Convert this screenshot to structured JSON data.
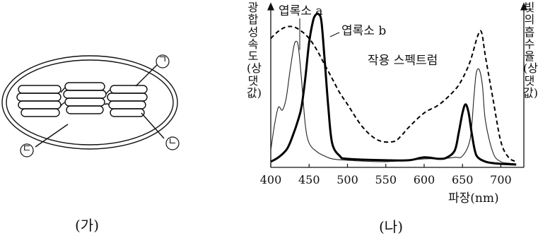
{
  "panel_a": {
    "caption": "(가)",
    "labels": {
      "thylakoid": "ㄱ",
      "granum_lamella": "ㄴ",
      "stroma": "ㄷ"
    }
  },
  "panel_b": {
    "caption": "(나)"
  },
  "chart_data": {
    "type": "line",
    "xlabel": "파장(nm)",
    "ylabel_left": "광합성 속도(상댓값)",
    "ylabel_right": "빛의 흡수율(상댓값)",
    "xlim": [
      400,
      730
    ],
    "x_ticks": [
      400,
      450,
      500,
      550,
      600,
      650,
      700
    ],
    "series": [
      {
        "name": "엽록소 a",
        "style": "thin",
        "color": "#222222",
        "x": [
          400,
          405,
          410,
          415,
          420,
          425,
          430,
          433,
          436,
          440,
          445,
          450,
          460,
          470,
          480,
          500,
          550,
          600,
          620,
          640,
          650,
          660,
          665,
          668,
          672,
          676,
          680,
          690,
          700,
          710,
          720
        ],
        "y": [
          0.1,
          0.28,
          0.4,
          0.38,
          0.46,
          0.65,
          0.82,
          0.86,
          0.82,
          0.6,
          0.28,
          0.15,
          0.09,
          0.06,
          0.04,
          0.03,
          0.02,
          0.04,
          0.04,
          0.05,
          0.06,
          0.18,
          0.48,
          0.64,
          0.66,
          0.55,
          0.3,
          0.08,
          0.02,
          0.01,
          0.005
        ]
      },
      {
        "name": "엽록소 b",
        "style": "thick",
        "color": "#000000",
        "x": [
          400,
          410,
          420,
          425,
          430,
          435,
          440,
          445,
          450,
          455,
          458,
          462,
          466,
          470,
          475,
          480,
          490,
          500,
          550,
          580,
          600,
          620,
          630,
          640,
          645,
          650,
          654,
          658,
          662,
          666,
          670,
          680,
          690,
          700,
          720
        ],
        "y": [
          0.02,
          0.05,
          0.1,
          0.15,
          0.22,
          0.3,
          0.4,
          0.6,
          0.85,
          1.0,
          1.04,
          1.05,
          1.0,
          0.75,
          0.4,
          0.15,
          0.06,
          0.04,
          0.03,
          0.03,
          0.05,
          0.04,
          0.05,
          0.1,
          0.22,
          0.36,
          0.42,
          0.36,
          0.22,
          0.1,
          0.05,
          0.02,
          0.01,
          0.005,
          0.0
        ]
      },
      {
        "name": "작용 스펙트럼",
        "style": "dashed",
        "color": "#000000",
        "x": [
          400,
          410,
          420,
          430,
          440,
          450,
          460,
          470,
          480,
          490,
          500,
          520,
          540,
          560,
          570,
          580,
          600,
          620,
          640,
          650,
          660,
          670,
          675,
          680,
          690,
          700,
          710,
          720
        ],
        "y": [
          0.88,
          0.93,
          0.96,
          0.96,
          0.93,
          0.88,
          0.8,
          0.7,
          0.6,
          0.5,
          0.42,
          0.26,
          0.17,
          0.16,
          0.2,
          0.26,
          0.36,
          0.42,
          0.52,
          0.6,
          0.72,
          0.9,
          0.92,
          0.75,
          0.45,
          0.16,
          0.05,
          0.02
        ]
      }
    ],
    "grid": false,
    "legend": "inline labels"
  }
}
